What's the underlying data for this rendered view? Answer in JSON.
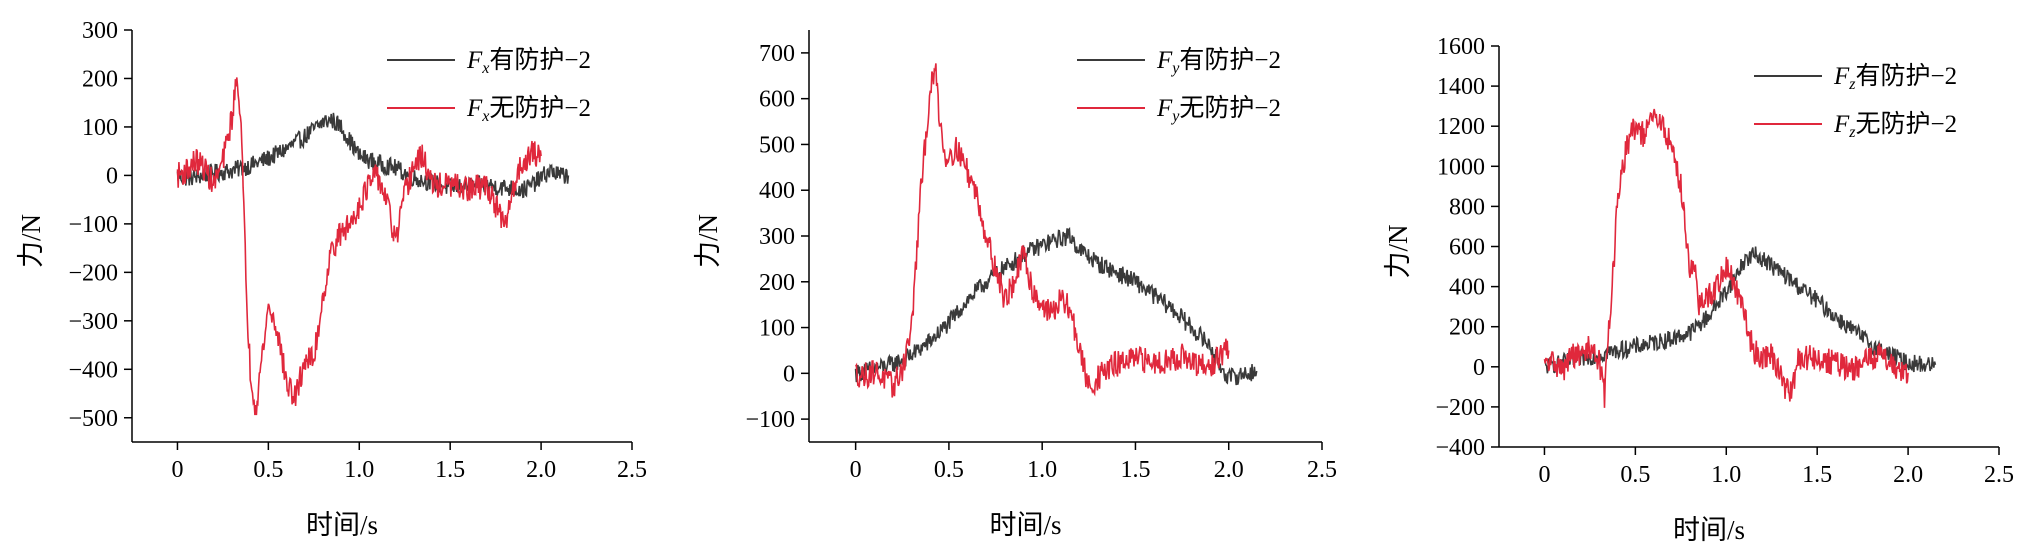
{
  "chart_data": [
    {
      "type": "line",
      "xlabel": "时间/s",
      "ylabel": "力/N",
      "xlim": [
        -0.25,
        2.5
      ],
      "ylim": [
        -550,
        300
      ],
      "xticks": [
        "0",
        "0.5",
        "1.0",
        "1.5",
        "2.0",
        "2.5"
      ],
      "yticks": [
        "300",
        "200",
        "100",
        "0",
        "−100",
        "−200",
        "−300",
        "−400",
        "−500"
      ],
      "legend_placement": "top-right",
      "series": [
        {
          "name": "有防护−2",
          "symbol": "F",
          "sub": "x",
          "color": "#3a3a3a",
          "x": [
            0,
            0.05,
            0.1,
            0.2,
            0.3,
            0.4,
            0.5,
            0.6,
            0.7,
            0.75,
            0.8,
            0.85,
            0.9,
            0.95,
            1.0,
            1.1,
            1.2,
            1.3,
            1.4,
            1.5,
            1.6,
            1.7,
            1.8,
            1.9,
            1.95,
            2.0,
            2.05,
            2.1,
            2.15
          ],
          "y": [
            0,
            -5,
            -3,
            5,
            10,
            20,
            35,
            55,
            80,
            95,
            110,
            115,
            100,
            70,
            40,
            25,
            15,
            -5,
            -15,
            -25,
            -20,
            -20,
            -25,
            -30,
            -20,
            -5,
            10,
            0,
            0
          ]
        },
        {
          "name": "无防护−2",
          "symbol": "F",
          "sub": "x",
          "color": "#e0283c",
          "x": [
            0,
            0.05,
            0.1,
            0.15,
            0.2,
            0.25,
            0.3,
            0.33,
            0.35,
            0.38,
            0.4,
            0.43,
            0.45,
            0.5,
            0.55,
            0.6,
            0.65,
            0.7,
            0.75,
            0.8,
            0.85,
            0.9,
            0.95,
            1.0,
            1.05,
            1.1,
            1.15,
            1.2,
            1.25,
            1.3,
            1.35,
            1.4,
            1.5,
            1.6,
            1.7,
            1.75,
            1.8,
            1.85,
            1.9,
            1.95,
            2.0
          ],
          "y": [
            0,
            10,
            30,
            15,
            -20,
            30,
            120,
            210,
            100,
            -250,
            -400,
            -480,
            -420,
            -270,
            -320,
            -430,
            -460,
            -380,
            -380,
            -250,
            -150,
            -120,
            -100,
            -60,
            -20,
            0,
            -50,
            -140,
            -40,
            20,
            40,
            -20,
            -20,
            -30,
            -20,
            -60,
            -110,
            -20,
            30,
            45,
            40
          ]
        }
      ]
    },
    {
      "type": "line",
      "xlabel": "时间/s",
      "ylabel": "力/N",
      "xlim": [
        -0.25,
        2.5
      ],
      "ylim": [
        -150,
        750
      ],
      "xticks": [
        "0",
        "0.5",
        "1.0",
        "1.5",
        "2.0",
        "2.5"
      ],
      "yticks": [
        "700",
        "600",
        "500",
        "400",
        "300",
        "200",
        "100",
        "0",
        "−100"
      ],
      "legend_placement": "top-right",
      "series": [
        {
          "name": "有防护−2",
          "symbol": "F",
          "sub": "y",
          "color": "#3a3a3a",
          "x": [
            0,
            0.1,
            0.2,
            0.3,
            0.4,
            0.5,
            0.6,
            0.7,
            0.8,
            0.9,
            1.0,
            1.1,
            1.15,
            1.2,
            1.3,
            1.4,
            1.5,
            1.6,
            1.7,
            1.8,
            1.9,
            1.95,
            2.0,
            2.1,
            2.15
          ],
          "y": [
            0,
            10,
            20,
            40,
            70,
            110,
            160,
            200,
            230,
            260,
            280,
            295,
            300,
            270,
            240,
            220,
            200,
            170,
            140,
            100,
            60,
            20,
            -10,
            0,
            5
          ]
        },
        {
          "name": "无防护−2",
          "symbol": "F",
          "sub": "y",
          "color": "#e0283c",
          "x": [
            0,
            0.05,
            0.1,
            0.15,
            0.2,
            0.25,
            0.3,
            0.35,
            0.4,
            0.43,
            0.45,
            0.48,
            0.5,
            0.55,
            0.6,
            0.65,
            0.7,
            0.75,
            0.8,
            0.85,
            0.9,
            0.95,
            1.0,
            1.05,
            1.1,
            1.15,
            1.2,
            1.25,
            1.3,
            1.35,
            1.4,
            1.5,
            1.6,
            1.7,
            1.75,
            1.8,
            1.9,
            1.95,
            2.0
          ],
          "y": [
            0,
            -5,
            5,
            -10,
            -30,
            10,
            100,
            400,
            620,
            660,
            560,
            470,
            480,
            490,
            440,
            390,
            300,
            230,
            160,
            200,
            260,
            180,
            150,
            130,
            160,
            140,
            50,
            -30,
            -10,
            10,
            20,
            30,
            25,
            30,
            40,
            20,
            10,
            40,
            50
          ]
        }
      ]
    },
    {
      "type": "line",
      "xlabel": "时间/s",
      "ylabel": "力/N",
      "xlim": [
        -0.25,
        2.5
      ],
      "ylim": [
        -400,
        1600
      ],
      "xticks": [
        "0",
        "0.5",
        "1.0",
        "1.5",
        "2.0",
        "2.5"
      ],
      "yticks": [
        "1600",
        "1400",
        "1200",
        "1000",
        "800",
        "600",
        "400",
        "200",
        "0",
        "−200",
        "−400"
      ],
      "legend_placement": "top-right",
      "series": [
        {
          "name": "有防护−2",
          "symbol": "F",
          "sub": "z",
          "color": "#3a3a3a",
          "x": [
            0,
            0.1,
            0.2,
            0.3,
            0.4,
            0.5,
            0.6,
            0.7,
            0.8,
            0.9,
            1.0,
            1.05,
            1.1,
            1.15,
            1.2,
            1.3,
            1.4,
            1.5,
            1.6,
            1.7,
            1.8,
            1.9,
            2.0,
            2.1,
            2.15
          ],
          "y": [
            0,
            20,
            40,
            60,
            80,
            100,
            120,
            140,
            170,
            250,
            380,
            450,
            530,
            560,
            540,
            470,
            400,
            330,
            250,
            180,
            110,
            60,
            20,
            10,
            10
          ]
        },
        {
          "name": "无防护−2",
          "symbol": "F",
          "sub": "z",
          "color": "#e0283c",
          "x": [
            0,
            0.05,
            0.1,
            0.15,
            0.2,
            0.25,
            0.3,
            0.33,
            0.35,
            0.38,
            0.4,
            0.45,
            0.5,
            0.55,
            0.6,
            0.65,
            0.7,
            0.75,
            0.8,
            0.83,
            0.85,
            0.9,
            0.95,
            1.0,
            1.05,
            1.1,
            1.15,
            1.2,
            1.25,
            1.3,
            1.35,
            1.4,
            1.5,
            1.6,
            1.7,
            1.8,
            1.85,
            1.9,
            1.95,
            2.0
          ],
          "y": [
            0,
            30,
            -20,
            60,
            50,
            100,
            40,
            -150,
            150,
            500,
            800,
            1100,
            1200,
            1150,
            1250,
            1200,
            1100,
            900,
            500,
            450,
            300,
            350,
            400,
            500,
            400,
            250,
            80,
            50,
            60,
            -50,
            -150,
            50,
            40,
            20,
            -20,
            50,
            60,
            30,
            -10,
            -30
          ]
        }
      ]
    }
  ],
  "legend_suffixes": [
    "有防护−2",
    "无防护−2"
  ]
}
